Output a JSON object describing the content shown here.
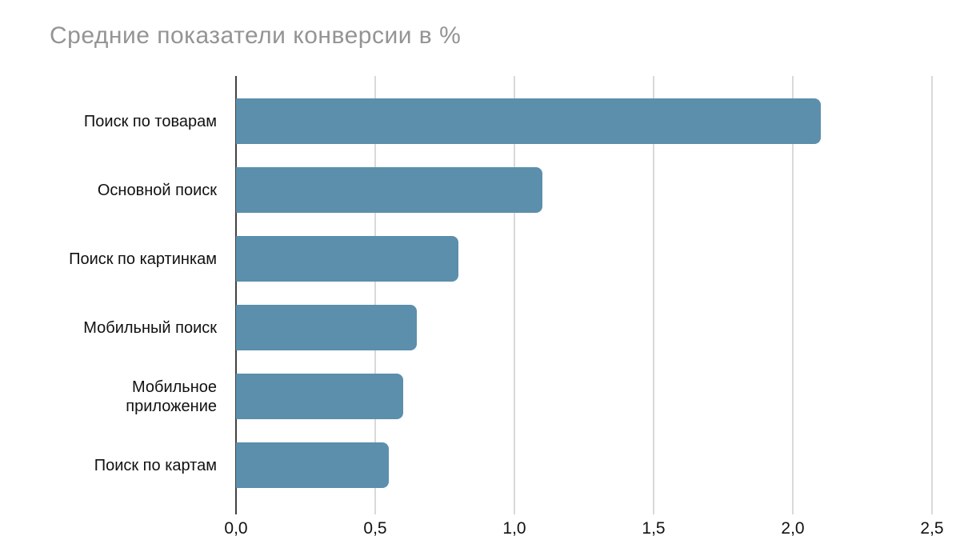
{
  "title": "Средние показатели конверсии в %",
  "colors": {
    "bar": "#5b8fac",
    "title_text": "#949494",
    "label_text": "#111111",
    "gridline": "#d9d9d9",
    "zero_axis": "#424242"
  },
  "chart_data": {
    "type": "bar",
    "orientation": "horizontal",
    "title": "Средние показатели конверсии в %",
    "categories": [
      "Поиск по товарам",
      "Основной поиск",
      "Поиск по картинкам",
      "Мобильный поиск",
      "Мобильное приложение",
      "Поиск по картам"
    ],
    "values": [
      2.1,
      1.1,
      0.8,
      0.65,
      0.6,
      0.55
    ],
    "xlabel": "",
    "ylabel": "",
    "xlim": [
      0,
      2.5
    ],
    "xticks": [
      0,
      0.5,
      1.0,
      1.5,
      2.0,
      2.5
    ],
    "xtick_labels": [
      "0,0",
      "0,5",
      "1,0",
      "1,5",
      "2,0",
      "2,5"
    ],
    "grid": true,
    "legend": false,
    "bar_color": "#5b8fac"
  }
}
